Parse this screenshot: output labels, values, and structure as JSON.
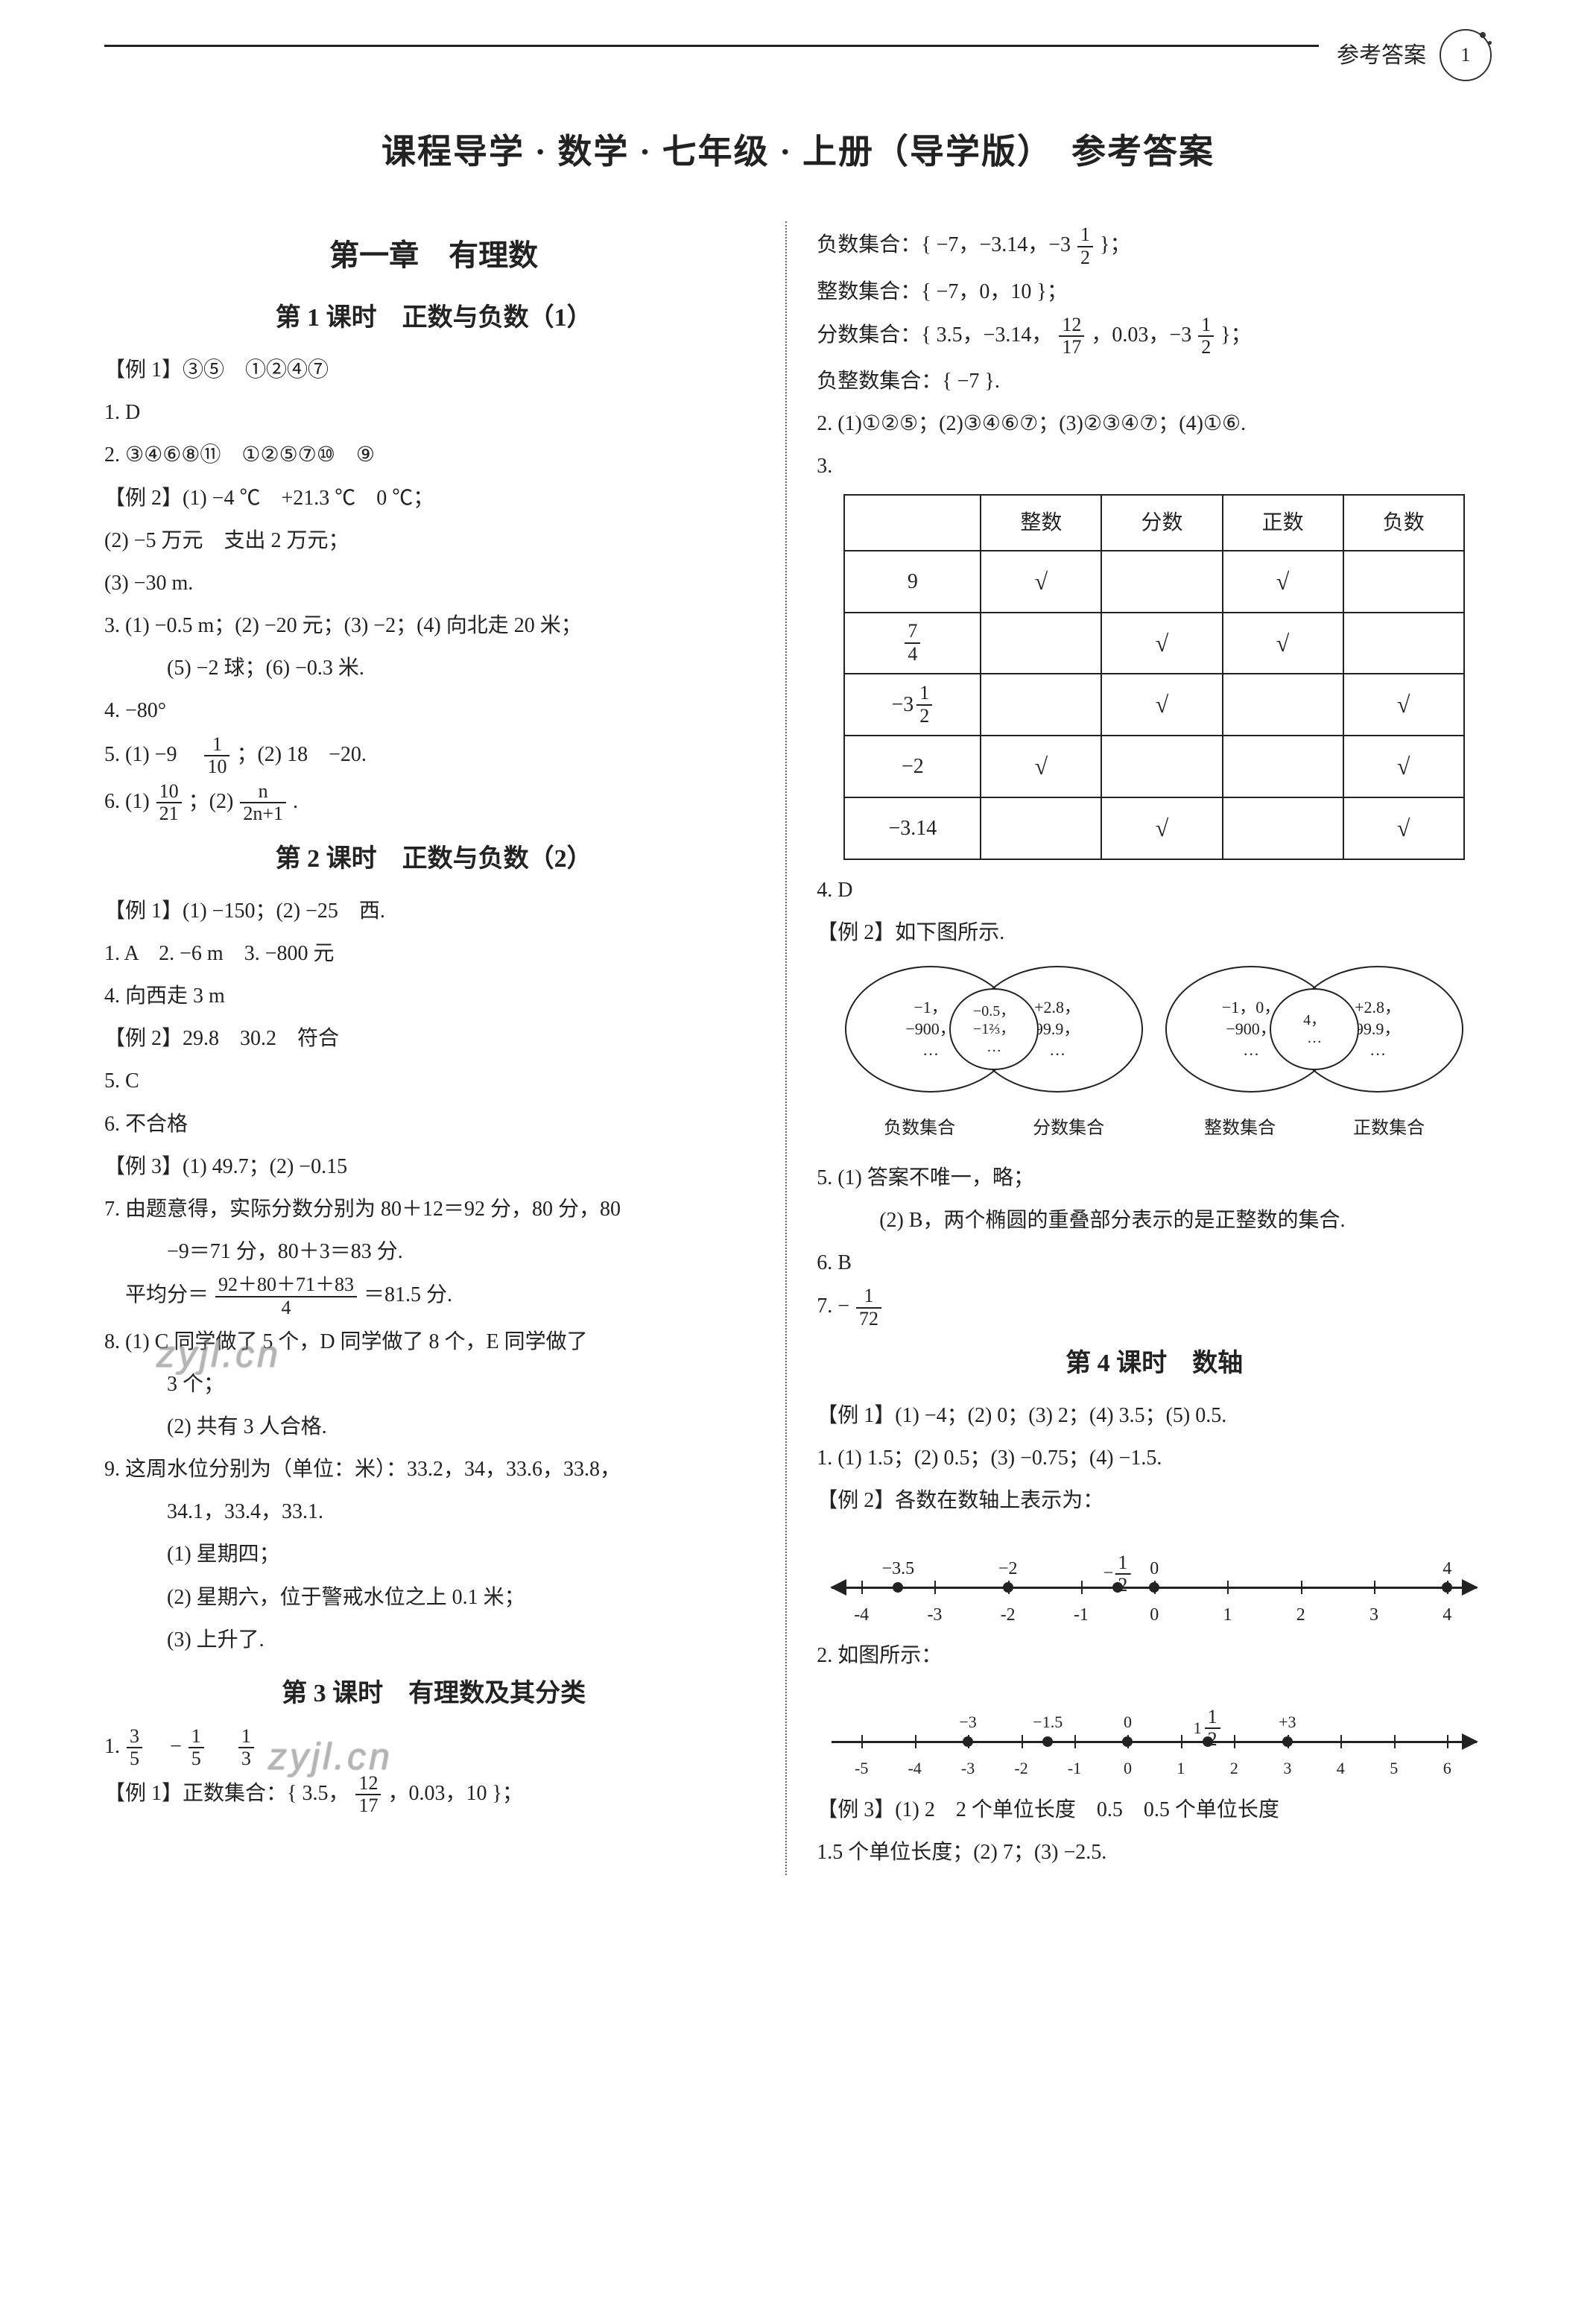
{
  "header": {
    "section_label": "参考答案",
    "page_number": "1"
  },
  "title": "课程导学 · 数学 · 七年级 · 上册（导学版）　参考答案",
  "watermark": "zyjl.cn",
  "colors": {
    "text": "#222222",
    "bg": "#ffffff",
    "rule": "#222222",
    "divider": "#666666",
    "watermark": "#777777"
  },
  "typography": {
    "title_pt": 46,
    "chapter_pt": 40,
    "lesson_pt": 34,
    "body_pt": 28,
    "small_pt": 24
  },
  "left": {
    "chapter": "第一章　有理数",
    "lesson1": {
      "heading": "第 1 课时　正数与负数（1）",
      "lines": [
        "【例 1】③⑤　①②④⑦",
        "1. D",
        "2. ③④⑥⑧⑪　①②⑤⑦⑩　⑨",
        "【例 2】(1) −4 ℃　+21.3 ℃　0 ℃；",
        "(2) −5 万元　支出 2 万元；",
        "(3) −30 m.",
        "3. (1) −0.5 m；(2) −20 元；(3) −2；(4) 向北走 20 米；",
        "　(5) −2 球；(6) −0.3 米.",
        "4. −80°"
      ],
      "l5_prefix": "5. (1) −9　",
      "l5_frac": {
        "n": "1",
        "d": "10"
      },
      "l5_suffix": "；(2) 18　−20.",
      "l6_prefix": "6. (1) ",
      "l6_frac1": {
        "n": "10",
        "d": "21"
      },
      "l6_mid": "；(2) ",
      "l6_frac2": {
        "n": "n",
        "d": "2n+1"
      },
      "l6_suffix": "."
    },
    "lesson2": {
      "heading": "第 2 课时　正数与负数（2）",
      "lines_a": [
        "【例 1】(1) −150；(2) −25　西.",
        "1. A　2. −6 m　3. −800 元",
        "4. 向西走 3 m",
        "【例 2】29.8　30.2　符合",
        "5. C",
        "6. 不合格",
        "【例 3】(1) 49.7；(2) −0.15",
        "7. 由题意得，实际分数分别为 80＋12＝92 分，80 分，80",
        "　−9＝71 分，80＋3＝83 分."
      ],
      "avg_prefix": "　平均分＝",
      "avg_frac": {
        "n": "92＋80＋71＋83",
        "d": "4"
      },
      "avg_suffix": "＝81.5 分.",
      "lines_b": [
        "8. (1) C 同学做了 5 个，D 同学做了 8 个，E 同学做了",
        "　3 个；",
        "　(2) 共有 3 人合格.",
        "9. 这周水位分别为（单位：米）：33.2，34，33.6，33.8，",
        "　34.1，33.4，33.1.",
        "　(1) 星期四；",
        "　(2) 星期六，位于警戒水位之上 0.1 米；",
        "　(3) 上升了."
      ]
    },
    "lesson3": {
      "heading": "第 3 课时　有理数及其分类",
      "q1_prefix": "1. ",
      "q1_a": {
        "n": "3",
        "d": "5"
      },
      "q1_mid1": "　−",
      "q1_b": {
        "n": "1",
        "d": "5"
      },
      "q1_mid2": "　",
      "q1_c": {
        "n": "1",
        "d": "3"
      },
      "ex1_prefix": "【例 1】正数集合：{ 3.5，",
      "ex1_frac": {
        "n": "12",
        "d": "17"
      },
      "ex1_suffix": "，0.03，10 }；"
    }
  },
  "right": {
    "neg_prefix": "负数集合：{ −7，−3.14，−3",
    "neg_frac": {
      "n": "1",
      "d": "2"
    },
    "neg_suffix": " }；",
    "int_line": "整数集合：{ −7，0，10 }；",
    "frac_prefix": "分数集合：{ 3.5，−3.14，",
    "frac_mid": {
      "n": "12",
      "d": "17"
    },
    "frac_mid2": "，0.03，−3",
    "frac_suffix": " }；",
    "negint": "负整数集合：{ −7 }.",
    "q2": "2. (1)①②⑤；(2)③④⑥⑦；(3)②③④⑦；(4)①⑥.",
    "q3": "3.",
    "table": {
      "headers": [
        "",
        "整数",
        "分数",
        "正数",
        "负数"
      ],
      "rows": [
        {
          "label": "9",
          "cells": [
            "√",
            "",
            "√",
            ""
          ]
        },
        {
          "label_frac": {
            "n": "7",
            "d": "4"
          },
          "cells": [
            "",
            "√",
            "√",
            ""
          ]
        },
        {
          "label_mixed": {
            "sign": "−3",
            "n": "1",
            "d": "2"
          },
          "cells": [
            "",
            "√",
            "",
            "√"
          ]
        },
        {
          "label": "−2",
          "cells": [
            "√",
            "",
            "",
            "√"
          ]
        },
        {
          "label": "−3.14",
          "cells": [
            "",
            "√",
            "",
            "√"
          ]
        }
      ]
    },
    "after_table": [
      "4. D",
      "【例 2】如下图所示."
    ],
    "venn": {
      "left": {
        "a": "−1，\n−900，\n…",
        "mid": "−0.5，\n−1⅔，\n…",
        "b": "+2.8，\n99.9，\n…",
        "la": "负数集合",
        "lb": "分数集合"
      },
      "right": {
        "a": "−1，0，\n−900，\n…",
        "mid": "4，\n…",
        "b": "+2.8，\n99.9，\n…",
        "la": "整数集合",
        "lb": "正数集合"
      }
    },
    "after_venn": [
      "5. (1) 答案不唯一，略；",
      "　(2) B，两个椭圆的重叠部分表示的是正整数的集合.",
      "6. B"
    ],
    "q7_prefix": "7. −",
    "q7_frac": {
      "n": "1",
      "d": "72"
    },
    "lesson4": {
      "heading": "第 4 课时　数轴",
      "lines_a": [
        "【例 1】(1) −4；(2) 0；(3) 2；(4) 3.5；(5) 0.5.",
        "1. (1) 1.5；(2) 0.5；(3) −0.75；(4) −1.5.",
        "【例 2】各数在数轴上表示为："
      ],
      "numline1": {
        "range": [
          -4,
          4
        ],
        "ticks": [
          -4,
          -3,
          -2,
          -1,
          0,
          1,
          2,
          3,
          4
        ],
        "top_labels": [
          {
            "x": -3.5,
            "text": "−3.5"
          },
          {
            "x": -2,
            "text": "−2"
          },
          {
            "x": -0.5,
            "text_frac": {
              "sign": "−",
              "n": "1",
              "d": "2"
            }
          },
          {
            "x": 0,
            "text": "0"
          },
          {
            "x": 4,
            "text": "4"
          }
        ],
        "dots": [
          -3.5,
          -2,
          -0.5,
          0,
          4
        ],
        "left_arrow": true
      },
      "mid_line": "2. 如图所示：",
      "numline2": {
        "range": [
          -5,
          6
        ],
        "ticks": [
          -5,
          -4,
          -3,
          -2,
          -1,
          0,
          1,
          2,
          3,
          4,
          5,
          6
        ],
        "top_labels": [
          {
            "x": -3,
            "text": "−3"
          },
          {
            "x": -1.5,
            "text": "−1.5"
          },
          {
            "x": 0,
            "text": "0"
          },
          {
            "x": 1.5,
            "text_mixed": {
              "w": "1",
              "n": "1",
              "d": "2"
            }
          },
          {
            "x": 3,
            "text": "+3"
          }
        ],
        "dots": [
          -3,
          -1.5,
          0,
          1.5,
          3
        ],
        "left_arrow": false
      },
      "lines_b": [
        "【例 3】(1) 2　2 个单位长度　0.5　0.5 个单位长度",
        "1.5 个单位长度；(2) 7；(3) −2.5."
      ]
    }
  }
}
